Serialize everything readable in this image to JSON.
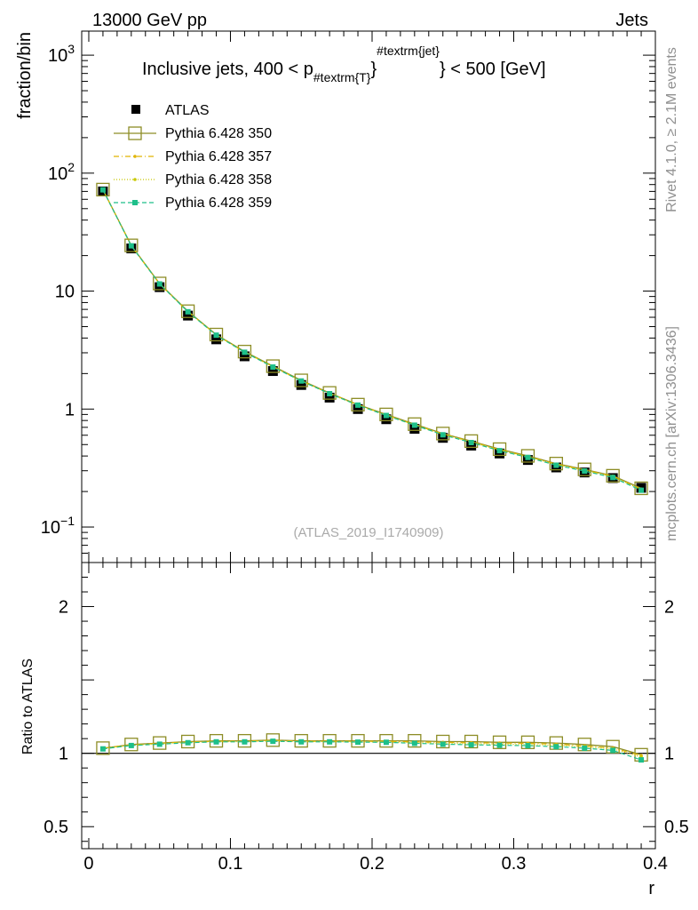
{
  "header": {
    "left": "13000 GeV pp",
    "right": "Jets"
  },
  "side_labels": {
    "rivet": "Rivet 4.1.0, ≥ 2.1M events",
    "mcplots": "mcplots.cern.ch [arXiv:1306.3436]"
  },
  "colors": {
    "atlas": "#000000",
    "p350": "#8d8d26",
    "p357": "#e0b400",
    "p358": "#c8c800",
    "p359": "#1ebf8a"
  },
  "chart_data": {
    "type": "line",
    "title_parts": {
      "pre": "Inclusive jets, 400 < p",
      "sub": "#textrm{T}",
      "sup": "#textrm{jet}",
      "post": "} < 500 [GeV]"
    },
    "watermark": "(ATLAS_2019_I1740909)",
    "xlabel": "r",
    "ylabel_main": "fraction/bin",
    "ylabel_ratio": "Ratio to ATLAS",
    "xlim": [
      -0.005,
      0.4
    ],
    "ylim_main": [
      0.05,
      1600
    ],
    "ylim_ratio": [
      0.35,
      2.3
    ],
    "x_ticks": [
      {
        "value": 0,
        "label": "0"
      },
      {
        "value": 0.1,
        "label": "0.1"
      },
      {
        "value": 0.2,
        "label": "0.2"
      },
      {
        "value": 0.3,
        "label": "0.3"
      },
      {
        "value": 0.4,
        "label": "0.4"
      }
    ],
    "y_ticks_main": [
      {
        "value": 0.1,
        "base": "10",
        "exp": "−1"
      },
      {
        "value": 1,
        "base": "1",
        "exp": ""
      },
      {
        "value": 10,
        "base": "10",
        "exp": ""
      },
      {
        "value": 100,
        "base": "10",
        "exp": "2"
      },
      {
        "value": 1000,
        "base": "10",
        "exp": "3"
      }
    ],
    "y_ticks_ratio": [
      {
        "value": 0.5,
        "label": "0.5"
      },
      {
        "value": 1,
        "label": "1"
      },
      {
        "value": 2,
        "label": "2"
      }
    ],
    "x": [
      0.01,
      0.03,
      0.05,
      0.07,
      0.09,
      0.11,
      0.13,
      0.15,
      0.17,
      0.19,
      0.21,
      0.23,
      0.25,
      0.27,
      0.29,
      0.31,
      0.33,
      0.35,
      0.37,
      0.39
    ],
    "series": [
      {
        "name": "ATLAS",
        "key": "atlas",
        "values": [
          70.0,
          23.0,
          10.8,
          6.2,
          3.9,
          2.8,
          2.1,
          1.6,
          1.25,
          1.0,
          0.82,
          0.68,
          0.57,
          0.49,
          0.42,
          0.37,
          0.32,
          0.29,
          0.26,
          0.215
        ]
      },
      {
        "name": "Pythia 6.428 350",
        "key": "p350",
        "values": [
          72.5,
          24.4,
          11.6,
          6.75,
          4.28,
          3.07,
          2.31,
          1.75,
          1.37,
          1.09,
          0.9,
          0.745,
          0.62,
          0.535,
          0.457,
          0.401,
          0.345,
          0.308,
          0.272,
          0.213
        ],
        "ratio": [
          1.035,
          1.06,
          1.07,
          1.08,
          1.085,
          1.085,
          1.09,
          1.085,
          1.085,
          1.085,
          1.085,
          1.085,
          1.08,
          1.08,
          1.075,
          1.075,
          1.07,
          1.06,
          1.045,
          0.99
        ]
      },
      {
        "name": "Pythia 6.428 357",
        "key": "p357",
        "values": [
          72.4,
          24.3,
          11.5,
          6.72,
          4.26,
          3.05,
          2.29,
          1.74,
          1.36,
          1.09,
          0.89,
          0.738,
          0.615,
          0.53,
          0.452,
          0.397,
          0.342,
          0.305,
          0.27,
          0.21
        ],
        "ratio": [
          1.035,
          1.058,
          1.068,
          1.078,
          1.082,
          1.082,
          1.088,
          1.082,
          1.082,
          1.082,
          1.082,
          1.078,
          1.075,
          1.072,
          1.07,
          1.068,
          1.062,
          1.05,
          1.035,
          0.985
        ]
      },
      {
        "name": "Pythia 6.428 358",
        "key": "p358",
        "values": [
          72.3,
          24.3,
          11.5,
          6.7,
          4.25,
          3.04,
          2.28,
          1.73,
          1.35,
          1.08,
          0.885,
          0.733,
          0.61,
          0.525,
          0.448,
          0.393,
          0.338,
          0.302,
          0.267,
          0.208
        ],
        "ratio": [
          1.033,
          1.055,
          1.065,
          1.075,
          1.08,
          1.08,
          1.085,
          1.08,
          1.08,
          1.078,
          1.078,
          1.072,
          1.068,
          1.065,
          1.062,
          1.06,
          1.055,
          1.045,
          1.03,
          0.975
        ]
      },
      {
        "name": "Pythia 6.428 359",
        "key": "p359",
        "values": [
          72.2,
          24.2,
          11.5,
          6.68,
          4.23,
          3.03,
          2.27,
          1.73,
          1.35,
          1.08,
          0.882,
          0.73,
          0.605,
          0.52,
          0.444,
          0.389,
          0.334,
          0.298,
          0.263,
          0.205
        ],
        "ratio": [
          1.03,
          1.053,
          1.062,
          1.072,
          1.078,
          1.078,
          1.082,
          1.078,
          1.078,
          1.076,
          1.075,
          1.068,
          1.062,
          1.058,
          1.055,
          1.052,
          1.045,
          1.035,
          1.02,
          0.955
        ]
      }
    ]
  }
}
